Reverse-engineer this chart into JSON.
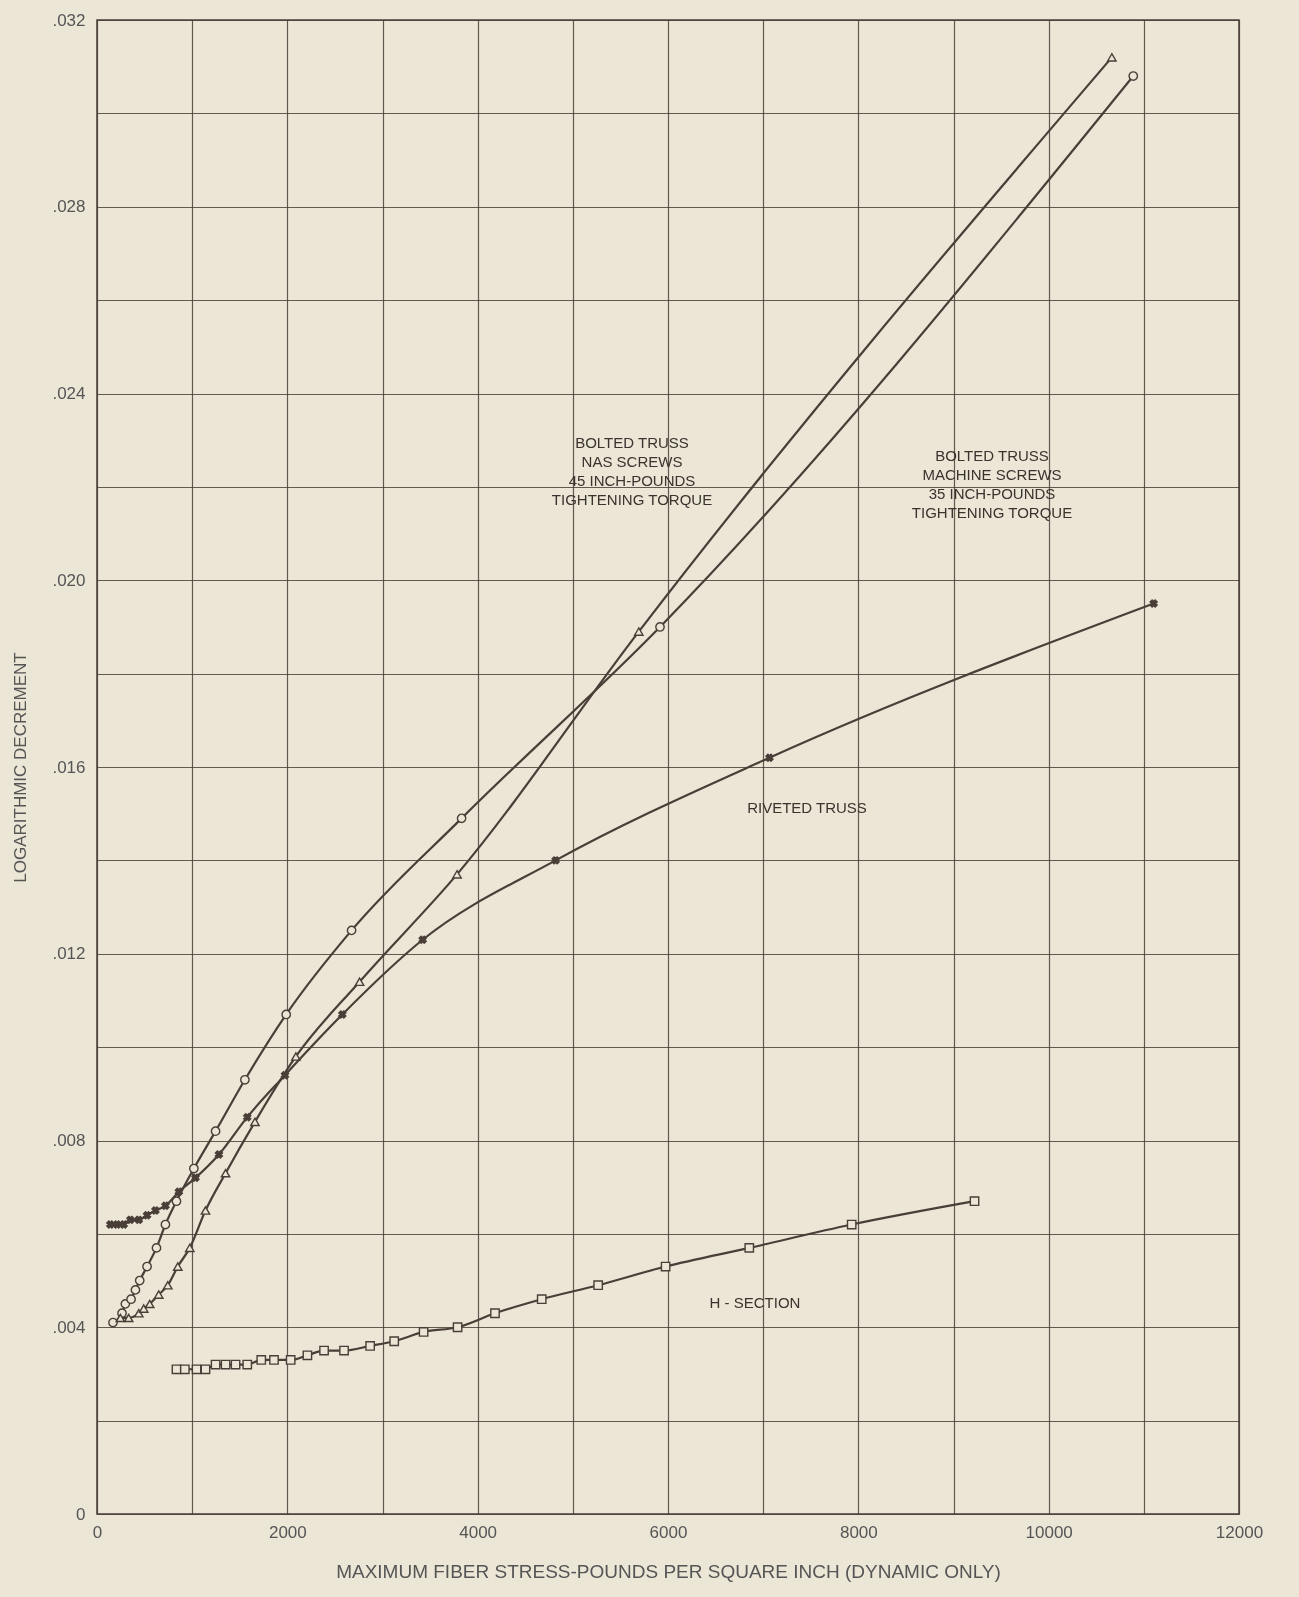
{
  "chart_data": {
    "type": "line",
    "xlabel": "MAXIMUM FIBER STRESS-POUNDS PER SQUARE INCH (DYNAMIC ONLY)",
    "ylabel": "LOGARITHMIC DECREMENT",
    "xlim": [
      0,
      12000
    ],
    "xticks": [
      0,
      {
        "value": 1000,
        "label": null
      },
      2000,
      {
        "value": 3000,
        "label": null
      },
      4000,
      {
        "value": 5000,
        "label": null
      },
      6000,
      {
        "value": 7000,
        "label": null
      },
      8000,
      {
        "value": 9000,
        "label": null
      },
      10000,
      {
        "value": 11000,
        "label": null
      },
      12000
    ],
    "ylim": [
      0,
      0.032
    ],
    "yticks": [
      0,
      {
        "value": 0.002,
        "label": null
      },
      {
        "value": 0.004,
        "label": ".004"
      },
      {
        "value": 0.006,
        "label": null
      },
      {
        "value": 0.008,
        "label": ".008"
      },
      {
        "value": 0.01,
        "label": null
      },
      {
        "value": 0.012,
        "label": ".012"
      },
      {
        "value": 0.014,
        "label": null
      },
      {
        "value": 0.016,
        "label": ".016"
      },
      {
        "value": 0.018,
        "label": null
      },
      {
        "value": 0.02,
        "label": ".020"
      },
      {
        "value": 0.022,
        "label": null
      },
      {
        "value": 0.024,
        "label": ".024"
      },
      {
        "value": 0.026,
        "label": null
      },
      {
        "value": 0.028,
        "label": ".028"
      },
      {
        "value": 0.03,
        "label": null
      },
      {
        "value": 0.032,
        "label": ".032"
      }
    ],
    "grid": true,
    "series": [
      {
        "color": "#4a3f38",
        "marker": "circle",
        "x": [
          168,
          263,
          298,
          358,
          404,
          449,
          526,
          625,
          719,
          835,
          1018,
          1246,
          1554,
          1988,
          2675,
          3831,
          5916,
          10889
        ],
        "values": [
          0.0041,
          0.0043,
          0.0045,
          0.0046,
          0.0048,
          0.005,
          0.0053,
          0.0057,
          0.0062,
          0.0067,
          0.0074,
          0.0082,
          0.0093,
          0.0107,
          0.0125,
          0.0149,
          0.019,
          0.0308
        ]
      },
      {
        "color": "#4a3f38",
        "marker": "triangle",
        "x": [
          246,
          333,
          439,
          491,
          554,
          649,
          744,
          849,
          975,
          1140,
          1351,
          1660,
          2090,
          2759,
          3783,
          5693,
          10664
        ],
        "values": [
          0.0042,
          0.0042,
          0.0043,
          0.0044,
          0.0045,
          0.0047,
          0.0049,
          0.0053,
          0.0057,
          0.0065,
          0.0073,
          0.0084,
          0.0098,
          0.0114,
          0.0137,
          0.0189,
          0.0312
        ]
      },
      {
        "color": "#4a3f38",
        "marker": "cross",
        "x": [
          140,
          211,
          281,
          351,
          439,
          526,
          614,
          719,
          860,
          1035,
          1281,
          1579,
          1975,
          2578,
          3422,
          4819,
          7066,
          11103
        ],
        "values": [
          0.0062,
          0.0062,
          0.0062,
          0.0063,
          0.0063,
          0.0064,
          0.0065,
          0.0066,
          0.0069,
          0.0072,
          0.0077,
          0.0085,
          0.0094,
          0.0107,
          0.0123,
          0.014,
          0.0162,
          0.0195
        ]
      },
      {
        "color": "#4a3f38",
        "marker": "square",
        "x": [
          835,
          923,
          1046,
          1140,
          1246,
          1351,
          1456,
          1579,
          1726,
          1860,
          2035,
          2211,
          2386,
          2596,
          2870,
          3123,
          3432,
          3789,
          4182,
          4673,
          5266,
          5975,
          6854,
          7930,
          9221
        ],
        "values": [
          0.0031,
          0.0031,
          0.0031,
          0.0031,
          0.0032,
          0.0032,
          0.0032,
          0.0032,
          0.0033,
          0.0033,
          0.0033,
          0.0034,
          0.0035,
          0.0035,
          0.0036,
          0.0037,
          0.0039,
          0.004,
          0.0043,
          0.0046,
          0.0049,
          0.0053,
          0.0057,
          0.0062,
          0.0067
        ]
      }
    ],
    "annotations": [
      "BOLTED TRUSS\nNAS SCREWS\n45 INCH-POUNDS\nTIGHTENING TORQUE",
      "BOLTED TRUSS\nMACHINE SCREWS\n35 INCH-POUNDS\nTIGHTENING TORQUE",
      "RIVETED TRUSS",
      "H - SECTION"
    ]
  }
}
